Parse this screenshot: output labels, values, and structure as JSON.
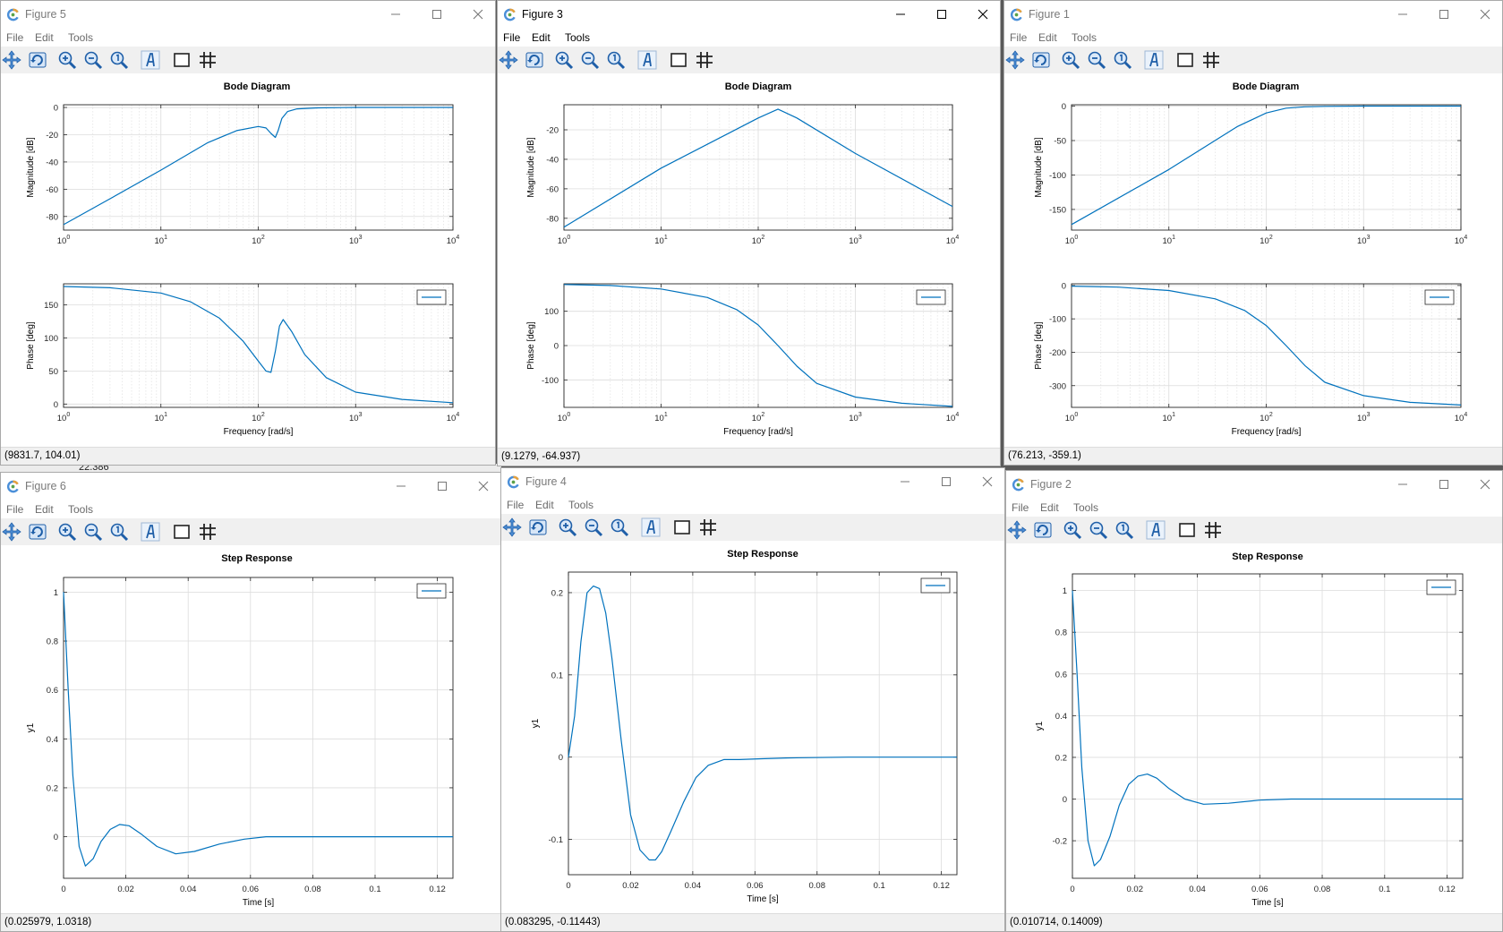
{
  "menus": [
    "File",
    "Edit",
    "Tools"
  ],
  "toolbar_icons": [
    "pan-icon",
    "rotate-icon",
    "zoom-in-icon",
    "zoom-out-icon",
    "zoom-reset-icon",
    "text-icon",
    "box-icon",
    "grid-icon"
  ],
  "colors": {
    "line": "#0072bd",
    "grid": "#dcdcdc",
    "axis": "#262626"
  },
  "background": {
    "fragment_left": "22.386"
  },
  "windows": [
    {
      "id": "fig5",
      "title": "Figure 5",
      "active": false,
      "status": "(9831.7, 104.01)",
      "chart_data": [
        {
          "type": "line",
          "title": "Bode Diagram",
          "xlabel": "",
          "ylabel": "Magnitude [dB]",
          "xscale": "log",
          "xlim": [
            1,
            10000
          ],
          "ylim": [
            -90,
            2
          ],
          "yticks": [
            "0",
            "-20",
            "-40",
            "-60",
            "-80"
          ],
          "xticks": [
            "10",
            "10",
            "10",
            "10",
            "10"
          ],
          "xtick_exponents": [
            "0",
            "1",
            "2",
            "3",
            "4"
          ],
          "grid": true,
          "legend": false,
          "series": [
            {
              "x": [
                1,
                3,
                10,
                30,
                60,
                100,
                120,
                135,
                150,
                160,
                175,
                200,
                250,
                400,
                1000,
                10000
              ],
              "y": [
                -86,
                -67,
                -46,
                -26,
                -17,
                -14,
                -15,
                -19,
                -22,
                -17,
                -8,
                -3,
                -1,
                -0.3,
                0,
                0
              ]
            }
          ]
        },
        {
          "type": "line",
          "title": "",
          "xlabel": "Frequency [rad/s]",
          "ylabel": "Phase [deg]",
          "xscale": "log",
          "xlim": [
            1,
            10000
          ],
          "ylim": [
            -5,
            182
          ],
          "yticks": [
            "0",
            "50",
            "100",
            "150"
          ],
          "xticks": [
            "10",
            "10",
            "10",
            "10",
            "10"
          ],
          "xtick_exponents": [
            "0",
            "1",
            "2",
            "3",
            "4"
          ],
          "grid": true,
          "legend": true,
          "series": [
            {
              "x": [
                1,
                3,
                10,
                20,
                40,
                70,
                100,
                120,
                135,
                150,
                165,
                180,
                220,
                300,
                500,
                1000,
                3000,
                10000
              ],
              "y": [
                178,
                176,
                168,
                155,
                130,
                95,
                65,
                50,
                48,
                80,
                118,
                128,
                110,
                75,
                40,
                18,
                7,
                2
              ]
            }
          ]
        }
      ]
    },
    {
      "id": "fig3",
      "title": "Figure 3",
      "active": true,
      "status": "(9.1279, -64.937)",
      "chart_data": [
        {
          "type": "line",
          "title": "Bode Diagram",
          "xlabel": "",
          "ylabel": "Magnitude [dB]",
          "xscale": "log",
          "xlim": [
            1,
            10000
          ],
          "ylim": [
            -88,
            -3
          ],
          "yticks": [
            "-20",
            "-40",
            "-60",
            "-80"
          ],
          "xticks": [
            "10",
            "10",
            "10",
            "10",
            "10"
          ],
          "xtick_exponents": [
            "0",
            "1",
            "2",
            "3",
            "4"
          ],
          "grid": true,
          "legend": false,
          "series": [
            {
              "x": [
                1,
                10,
                100,
                160,
                250,
                1000,
                10000
              ],
              "y": [
                -86,
                -46,
                -12,
                -6,
                -12,
                -36,
                -72
              ]
            }
          ]
        },
        {
          "type": "line",
          "title": "",
          "xlabel": "Frequency [rad/s]",
          "ylabel": "Phase [deg]",
          "xscale": "log",
          "xlim": [
            1,
            10000
          ],
          "ylim": [
            -180,
            180
          ],
          "yticks": [
            "100",
            "0",
            "-100"
          ],
          "xticks": [
            "10",
            "10",
            "10",
            "10",
            "10"
          ],
          "xtick_exponents": [
            "0",
            "1",
            "2",
            "3",
            "4"
          ],
          "grid": true,
          "legend": true,
          "series": [
            {
              "x": [
                1,
                3,
                10,
                30,
                60,
                100,
                160,
                250,
                400,
                1000,
                3000,
                10000
              ],
              "y": [
                178,
                175,
                165,
                140,
                105,
                60,
                0,
                -60,
                -110,
                -150,
                -168,
                -177
              ]
            }
          ]
        }
      ]
    },
    {
      "id": "fig1",
      "title": "Figure 1",
      "active": false,
      "status": "(76.213, -359.1)",
      "chart_data": [
        {
          "type": "line",
          "title": "Bode Diagram",
          "xlabel": "",
          "ylabel": "Magnitude [dB]",
          "xscale": "log",
          "xlim": [
            1,
            10000
          ],
          "ylim": [
            -180,
            2
          ],
          "yticks": [
            "0",
            "-50",
            "-100",
            "-150"
          ],
          "xticks": [
            "10",
            "10",
            "10",
            "10",
            "10"
          ],
          "xtick_exponents": [
            "0",
            "1",
            "2",
            "3",
            "4"
          ],
          "grid": true,
          "legend": false,
          "series": [
            {
              "x": [
                1,
                10,
                50,
                100,
                160,
                250,
                400,
                1000,
                10000
              ],
              "y": [
                -172,
                -92,
                -30,
                -10,
                -3,
                -1,
                -0.3,
                0,
                0
              ]
            }
          ]
        },
        {
          "type": "line",
          "title": "",
          "xlabel": "Frequency [rad/s]",
          "ylabel": "Phase [deg]",
          "xscale": "log",
          "xlim": [
            1,
            10000
          ],
          "ylim": [
            -365,
            5
          ],
          "yticks": [
            "0",
            "-100",
            "-200",
            "-300"
          ],
          "xticks": [
            "10",
            "10",
            "10",
            "10",
            "10"
          ],
          "xtick_exponents": [
            "0",
            "1",
            "2",
            "3",
            "4"
          ],
          "grid": true,
          "legend": true,
          "series": [
            {
              "x": [
                1,
                3,
                10,
                30,
                60,
                100,
                160,
                250,
                400,
                1000,
                3000,
                10000
              ],
              "y": [
                -2,
                -5,
                -15,
                -40,
                -75,
                -120,
                -180,
                -240,
                -290,
                -330,
                -350,
                -358
              ]
            }
          ]
        }
      ]
    },
    {
      "id": "fig6",
      "title": "Figure 6",
      "active": false,
      "status": "(0.025979, 1.0318)",
      "chart_data": [
        {
          "type": "line",
          "title": "Step Response",
          "xlabel": "Time [s]",
          "ylabel": "y1",
          "xscale": "linear",
          "xlim": [
            0,
            0.125
          ],
          "ylim": [
            -0.17,
            1.06
          ],
          "yticks": [
            "1",
            "0.8",
            "0.6",
            "0.4",
            "0.2",
            "0"
          ],
          "xticks": [
            "0",
            "0.02",
            "0.04",
            "0.06",
            "0.08",
            "0.1",
            "0.12"
          ],
          "grid": true,
          "legend": true,
          "series": [
            {
              "x": [
                0,
                0.0015,
                0.003,
                0.005,
                0.007,
                0.0095,
                0.012,
                0.015,
                0.018,
                0.021,
                0.025,
                0.03,
                0.036,
                0.042,
                0.05,
                0.058,
                0.065,
                0.08,
                0.1,
                0.125
              ],
              "y": [
                1,
                0.6,
                0.25,
                -0.04,
                -0.12,
                -0.09,
                -0.02,
                0.03,
                0.05,
                0.045,
                0.01,
                -0.04,
                -0.07,
                -0.06,
                -0.03,
                -0.01,
                0,
                0,
                0,
                0
              ]
            }
          ]
        }
      ]
    },
    {
      "id": "fig4",
      "title": "Figure 4",
      "active": false,
      "status": "(0.083295, -0.11443)",
      "chart_data": [
        {
          "type": "line",
          "title": "Step Response",
          "xlabel": "Time [s]",
          "ylabel": "y1",
          "xscale": "linear",
          "xlim": [
            0,
            0.125
          ],
          "ylim": [
            -0.143,
            0.225
          ],
          "yticks": [
            "0.2",
            "0.1",
            "0",
            "-0.1"
          ],
          "xticks": [
            "0",
            "0.02",
            "0.04",
            "0.06",
            "0.08",
            "0.1",
            "0.12"
          ],
          "grid": true,
          "legend": true,
          "series": [
            {
              "x": [
                0,
                0.002,
                0.004,
                0.006,
                0.008,
                0.01,
                0.012,
                0.014,
                0.017,
                0.02,
                0.023,
                0.026,
                0.028,
                0.03,
                0.033,
                0.037,
                0.041,
                0.045,
                0.05,
                0.055,
                0.062,
                0.07,
                0.09,
                0.125
              ],
              "y": [
                0,
                0.05,
                0.14,
                0.2,
                0.208,
                0.205,
                0.175,
                0.12,
                0.02,
                -0.07,
                -0.113,
                -0.125,
                -0.125,
                -0.115,
                -0.09,
                -0.055,
                -0.025,
                -0.01,
                -0.003,
                -0.003,
                -0.002,
                -0.001,
                0,
                0
              ]
            }
          ]
        }
      ]
    },
    {
      "id": "fig2",
      "title": "Figure 2",
      "active": false,
      "status": "(0.010714, 0.14009)",
      "chart_data": [
        {
          "type": "line",
          "title": "Step Response",
          "xlabel": "Time [s]",
          "ylabel": "y1",
          "xscale": "linear",
          "xlim": [
            0,
            0.125
          ],
          "ylim": [
            -0.38,
            1.08
          ],
          "yticks": [
            "1",
            "0.8",
            "0.6",
            "0.4",
            "0.2",
            "0",
            "-0.2"
          ],
          "xticks": [
            "0",
            "0.02",
            "0.04",
            "0.06",
            "0.08",
            "0.1",
            "0.12"
          ],
          "grid": true,
          "legend": true,
          "series": [
            {
              "x": [
                0,
                0.0015,
                0.003,
                0.005,
                0.007,
                0.009,
                0.012,
                0.015,
                0.018,
                0.021,
                0.024,
                0.027,
                0.031,
                0.036,
                0.042,
                0.05,
                0.06,
                0.07,
                0.09,
                0.125
              ],
              "y": [
                1,
                0.6,
                0.15,
                -0.2,
                -0.32,
                -0.29,
                -0.18,
                -0.03,
                0.07,
                0.11,
                0.12,
                0.1,
                0.05,
                0,
                -0.025,
                -0.02,
                -0.005,
                0,
                0,
                0
              ]
            }
          ]
        }
      ]
    }
  ]
}
